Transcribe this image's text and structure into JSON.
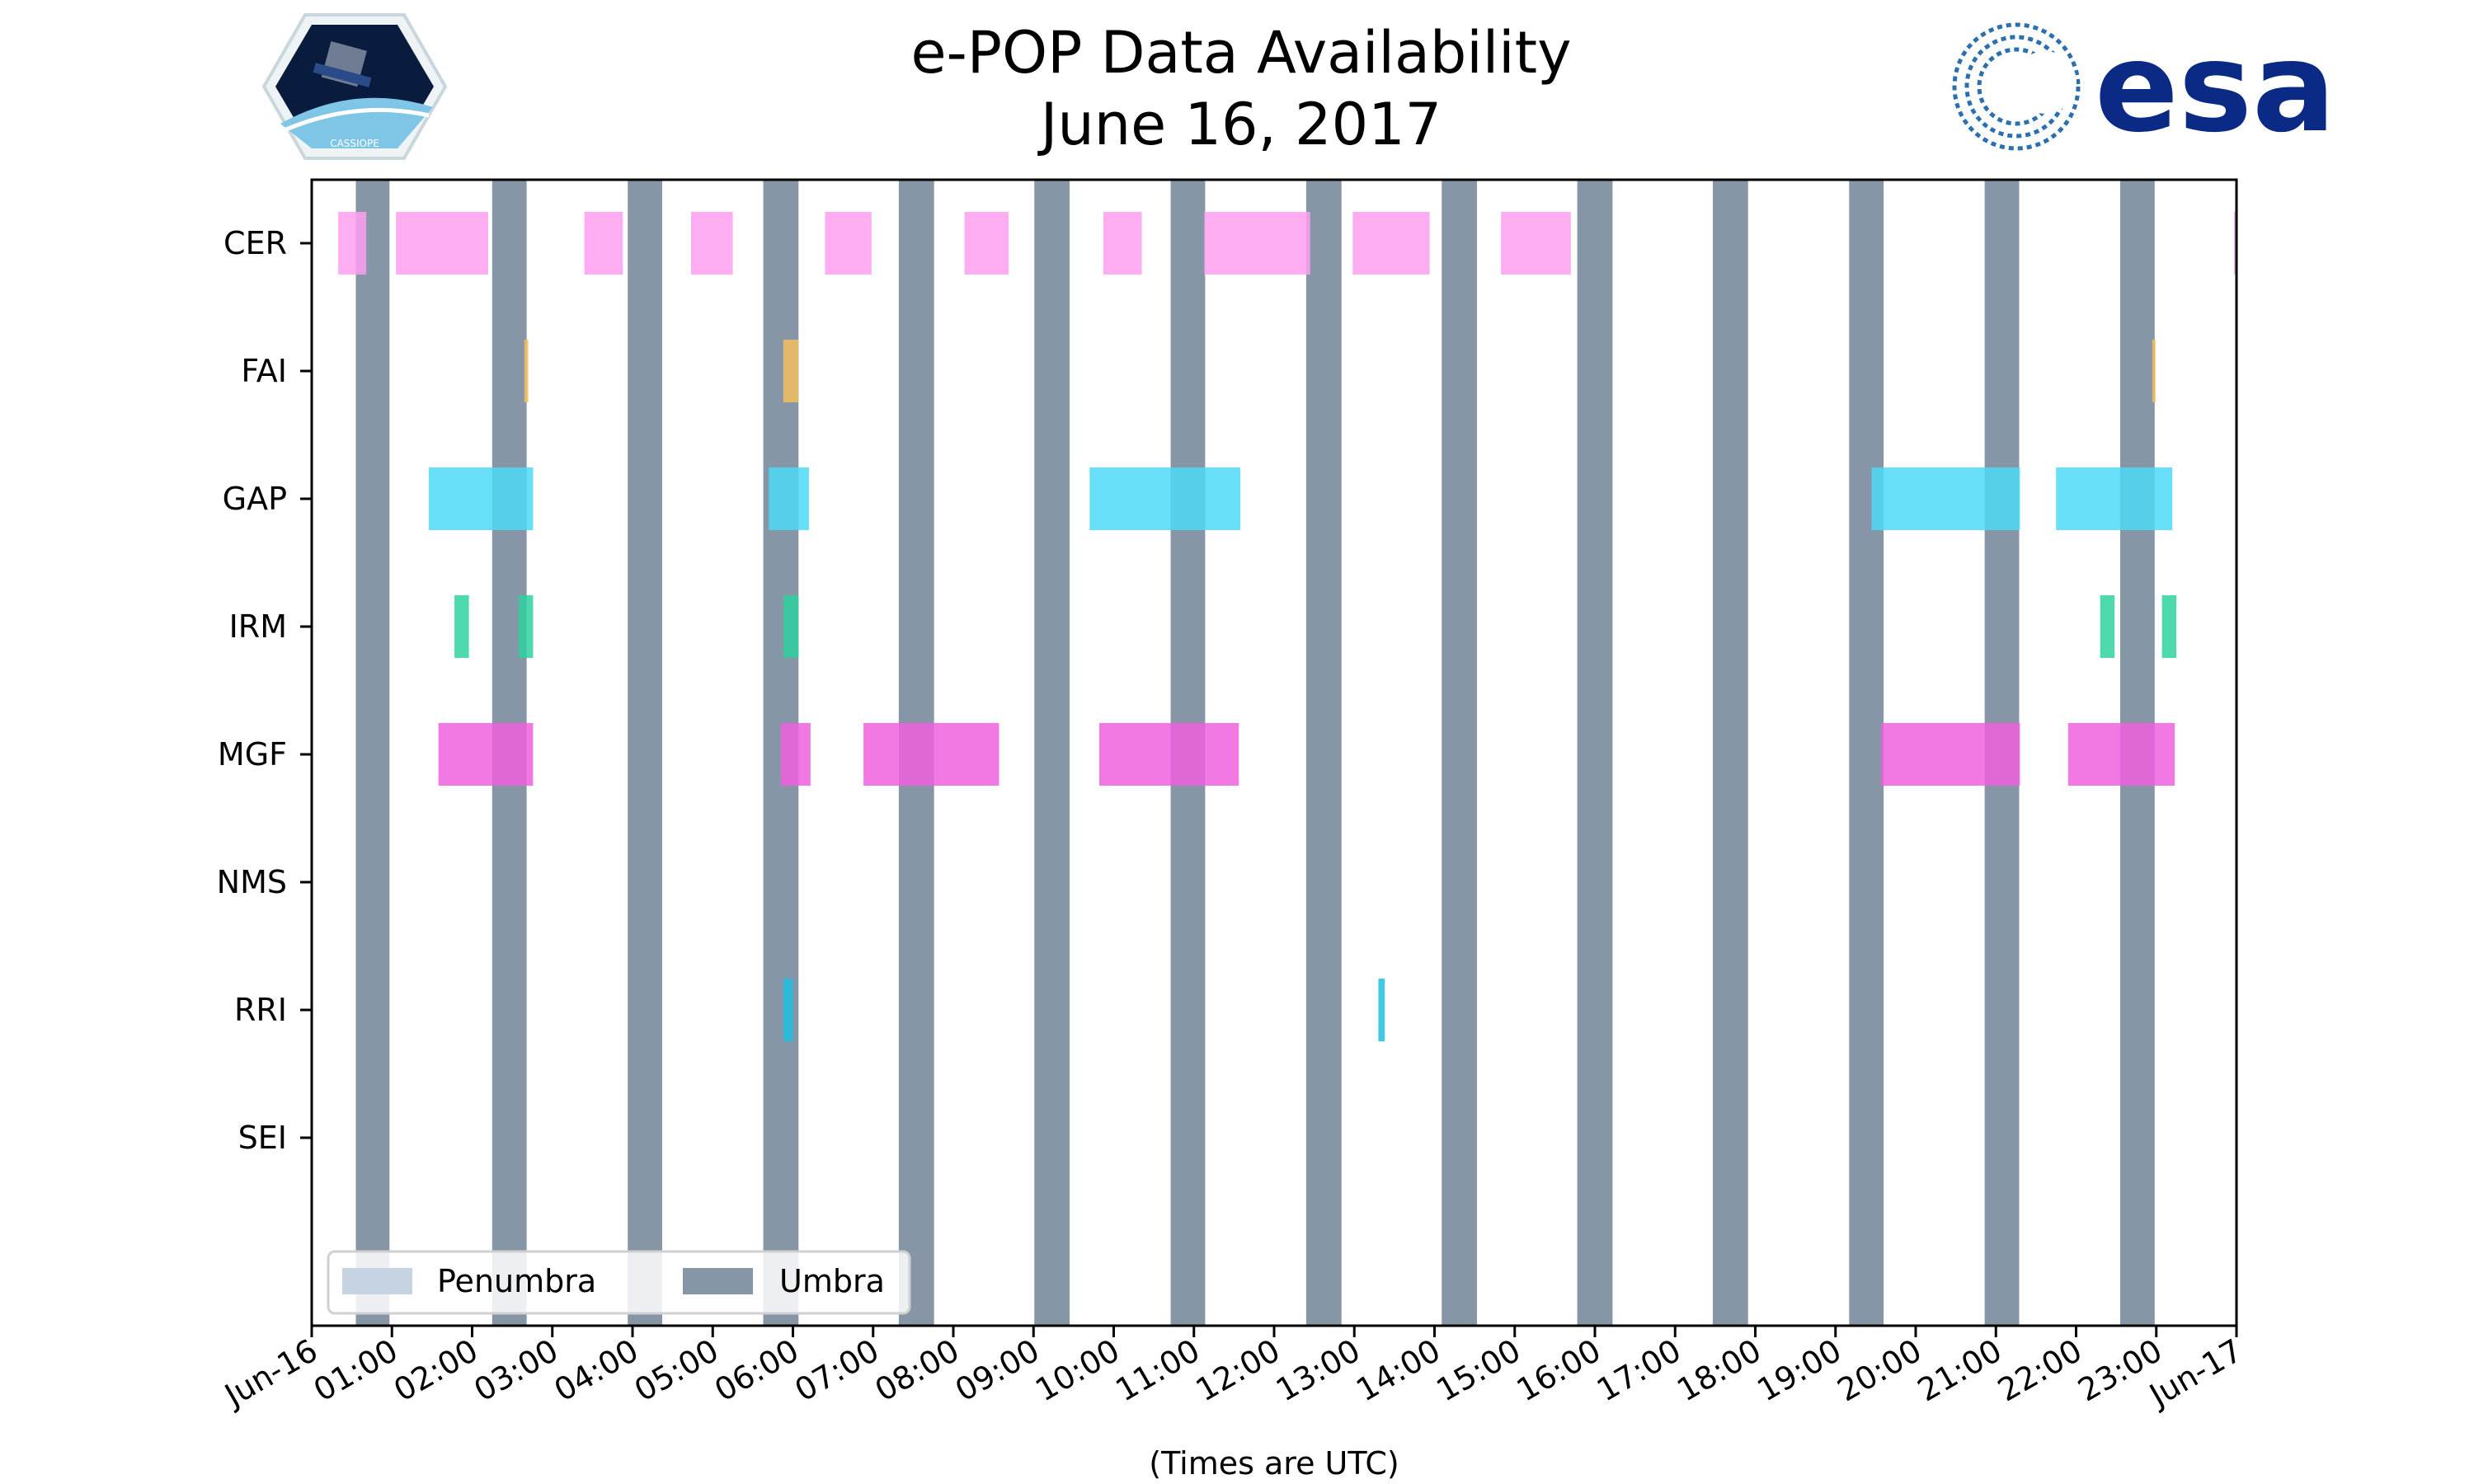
{
  "chart_data": {
    "type": "timeline",
    "title": "e-POP Data Availability",
    "subtitle": "June 16, 2017",
    "xlabel": "(Times are UTC)",
    "x_unit": "hours UTC",
    "xlim": [
      0,
      24
    ],
    "x_ticks": [
      "Jun-16",
      "01:00",
      "02:00",
      "03:00",
      "04:00",
      "05:00",
      "06:00",
      "07:00",
      "08:00",
      "09:00",
      "10:00",
      "11:00",
      "12:00",
      "13:00",
      "14:00",
      "15:00",
      "16:00",
      "17:00",
      "18:00",
      "19:00",
      "20:00",
      "21:00",
      "22:00",
      "23:00",
      "Jun-17"
    ],
    "instruments": [
      "CER",
      "FAI",
      "GAP",
      "IRM",
      "MGF",
      "NMS",
      "RRI",
      "SEI"
    ],
    "colors": {
      "CER": "#ff9ff0",
      "FAI": "#f0c060",
      "GAP": "#4dd9f7",
      "IRM": "#2ed1a0",
      "MGF": "#f060de",
      "NMS": "#c0c0c0",
      "RRI": "#1fbfe0",
      "SEI": "#c0c0c0",
      "umbra": "#8796a7",
      "penumbra": "#c6d3e3"
    },
    "umbra": [
      [
        0.55,
        0.97
      ],
      [
        2.25,
        2.68
      ],
      [
        3.94,
        4.37
      ],
      [
        5.63,
        6.07
      ],
      [
        7.32,
        7.76
      ],
      [
        9.01,
        9.45
      ],
      [
        10.71,
        11.14
      ],
      [
        12.4,
        12.84
      ],
      [
        14.09,
        14.53
      ],
      [
        15.78,
        16.22
      ],
      [
        17.47,
        17.91
      ],
      [
        19.17,
        19.6
      ],
      [
        20.86,
        21.29
      ],
      [
        22.55,
        22.98
      ]
    ],
    "series": [
      {
        "name": "CER",
        "intervals": [
          [
            0.33,
            0.68
          ],
          [
            1.05,
            2.2
          ],
          [
            3.4,
            3.88
          ],
          [
            4.73,
            5.25
          ],
          [
            6.4,
            6.98
          ],
          [
            8.14,
            8.69
          ],
          [
            9.87,
            10.35
          ],
          [
            11.13,
            12.45
          ],
          [
            12.98,
            13.94
          ],
          [
            14.83,
            15.7
          ],
          [
            23.97,
            24.0
          ]
        ]
      },
      {
        "name": "FAI",
        "intervals": [
          [
            2.65,
            2.7
          ],
          [
            5.88,
            6.07
          ],
          [
            22.95,
            22.99
          ]
        ]
      },
      {
        "name": "GAP",
        "intervals": [
          [
            1.46,
            2.76
          ],
          [
            5.7,
            6.2
          ],
          [
            9.7,
            11.58
          ],
          [
            19.45,
            21.3
          ],
          [
            21.75,
            23.2
          ]
        ]
      },
      {
        "name": "IRM",
        "intervals": [
          [
            1.78,
            1.96
          ],
          [
            2.58,
            2.76
          ],
          [
            5.88,
            6.07
          ],
          [
            22.3,
            22.48
          ],
          [
            23.07,
            23.25
          ]
        ]
      },
      {
        "name": "MGF",
        "intervals": [
          [
            1.58,
            2.76
          ],
          [
            5.85,
            6.22
          ],
          [
            6.88,
            8.57
          ],
          [
            9.82,
            11.56
          ],
          [
            19.57,
            21.3
          ],
          [
            21.9,
            23.23
          ]
        ]
      },
      {
        "name": "NMS",
        "intervals": []
      },
      {
        "name": "RRI",
        "intervals": [
          [
            5.88,
            6.0
          ],
          [
            13.3,
            13.38
          ]
        ]
      },
      {
        "name": "SEI",
        "intervals": []
      }
    ],
    "legend": {
      "placement": "lower-left",
      "items": [
        {
          "label": "Penumbra",
          "color": "#c6d3e3"
        },
        {
          "label": "Umbra",
          "color": "#8796a7"
        }
      ]
    },
    "grid": false
  },
  "logos": {
    "left": "CASSIOPE",
    "right": "esa"
  }
}
